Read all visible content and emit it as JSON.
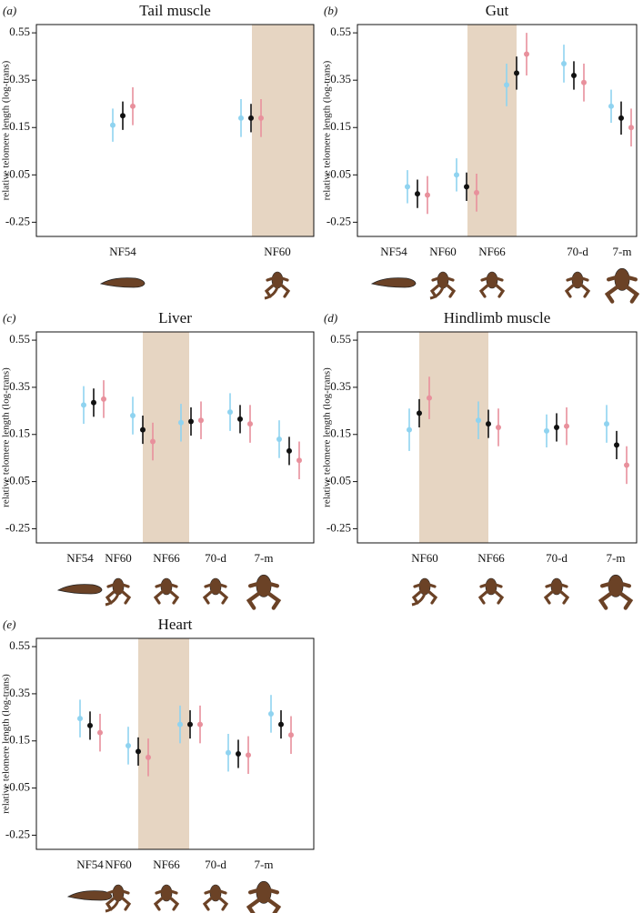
{
  "chart_data": [
    {
      "type": "errorbar",
      "panel_label": "(a)",
      "title": "Tail muscle",
      "y_label": "relative telomere length (log-trans)",
      "categories": [
        "NF54",
        "NF60"
      ],
      "series": [
        {
          "color": "#8fd3f0",
          "values": [
            0.16,
            0.19
          ],
          "errors": [
            0.07,
            0.08
          ]
        },
        {
          "color": "#111111",
          "values": [
            0.2,
            0.19
          ],
          "errors": [
            0.06,
            0.06
          ]
        },
        {
          "color": "#e8909c",
          "values": [
            0.24,
            0.19
          ],
          "errors": [
            0.08,
            0.08
          ]
        }
      ],
      "ylim": [
        -0.31,
        0.585
      ],
      "yticks": [
        -0.25,
        -0.05,
        0.15,
        0.35,
        0.55
      ]
    },
    {
      "type": "errorbar",
      "panel_label": "(b)",
      "title": "Gut",
      "y_label": "relative telomere length (log-trans)",
      "categories": [
        "NF54",
        "NF60",
        "NF66",
        "70-d",
        "7-m"
      ],
      "series": [
        {
          "color": "#8fd3f0",
          "values": [
            -0.1,
            -0.05,
            0.33,
            0.42,
            0.24
          ],
          "errors": [
            0.07,
            0.07,
            0.09,
            0.08,
            0.07
          ]
        },
        {
          "color": "#111111",
          "values": [
            -0.13,
            -0.1,
            0.38,
            0.37,
            0.19
          ],
          "errors": [
            0.06,
            0.06,
            0.07,
            0.06,
            0.07
          ]
        },
        {
          "color": "#e8909c",
          "values": [
            -0.135,
            -0.125,
            0.46,
            0.34,
            0.15
          ],
          "errors": [
            0.08,
            0.08,
            0.09,
            0.08,
            0.08
          ]
        }
      ],
      "ylim": [
        -0.31,
        0.585
      ],
      "yticks": [
        -0.25,
        -0.05,
        0.15,
        0.35,
        0.55
      ]
    },
    {
      "type": "errorbar",
      "panel_label": "(c)",
      "title": "Liver",
      "y_label": "relative telomere length (log-trans)",
      "categories": [
        "NF54",
        "NF60",
        "NF66",
        "70-d",
        "7-m"
      ],
      "series": [
        {
          "color": "#8fd3f0",
          "values": [
            0.275,
            0.23,
            0.2,
            0.245,
            0.13
          ],
          "errors": [
            0.08,
            0.08,
            0.08,
            0.08,
            0.08
          ]
        },
        {
          "color": "#111111",
          "values": [
            0.285,
            0.17,
            0.205,
            0.215,
            0.08
          ],
          "errors": [
            0.06,
            0.06,
            0.06,
            0.06,
            0.06
          ]
        },
        {
          "color": "#e8909c",
          "values": [
            0.3,
            0.12,
            0.21,
            0.195,
            0.04
          ],
          "errors": [
            0.08,
            0.08,
            0.08,
            0.08,
            0.08
          ]
        }
      ],
      "ylim": [
        -0.31,
        0.585
      ],
      "yticks": [
        -0.25,
        -0.05,
        0.15,
        0.35,
        0.55
      ]
    },
    {
      "type": "errorbar",
      "panel_label": "(d)",
      "title": "Hindlimb muscle",
      "y_label": "relative telomere length (log-trans)",
      "categories": [
        "NF60",
        "NF66",
        "70-d",
        "7-m"
      ],
      "series": [
        {
          "color": "#8fd3f0",
          "values": [
            0.17,
            0.21,
            0.165,
            0.195
          ],
          "errors": [
            0.09,
            0.08,
            0.07,
            0.08
          ]
        },
        {
          "color": "#111111",
          "values": [
            0.24,
            0.195,
            0.18,
            0.105
          ],
          "errors": [
            0.06,
            0.06,
            0.06,
            0.06
          ]
        },
        {
          "color": "#e8909c",
          "values": [
            0.305,
            0.18,
            0.185,
            0.02
          ],
          "errors": [
            0.09,
            0.08,
            0.08,
            0.08
          ]
        }
      ],
      "ylim": [
        -0.31,
        0.585
      ],
      "yticks": [
        -0.25,
        -0.05,
        0.15,
        0.35,
        0.55
      ]
    },
    {
      "type": "errorbar",
      "panel_label": "(e)",
      "title": "Heart",
      "y_label": "relative telomere length (log-trans)",
      "categories": [
        "NF54",
        "NF60",
        "NF66",
        "70-d",
        "7-m"
      ],
      "series": [
        {
          "color": "#8fd3f0",
          "values": [
            0.245,
            0.13,
            0.22,
            0.1,
            0.265
          ],
          "errors": [
            0.08,
            0.08,
            0.08,
            0.08,
            0.08
          ]
        },
        {
          "color": "#111111",
          "values": [
            0.215,
            0.105,
            0.22,
            0.095,
            0.22
          ],
          "errors": [
            0.06,
            0.06,
            0.06,
            0.06,
            0.06
          ]
        },
        {
          "color": "#e8909c",
          "values": [
            0.185,
            0.08,
            0.22,
            0.09,
            0.175
          ],
          "errors": [
            0.08,
            0.08,
            0.08,
            0.08,
            0.08
          ]
        }
      ],
      "ylim": [
        -0.31,
        0.585
      ],
      "yticks": [
        -0.25,
        -0.05,
        0.15,
        0.35,
        0.55
      ]
    }
  ]
}
